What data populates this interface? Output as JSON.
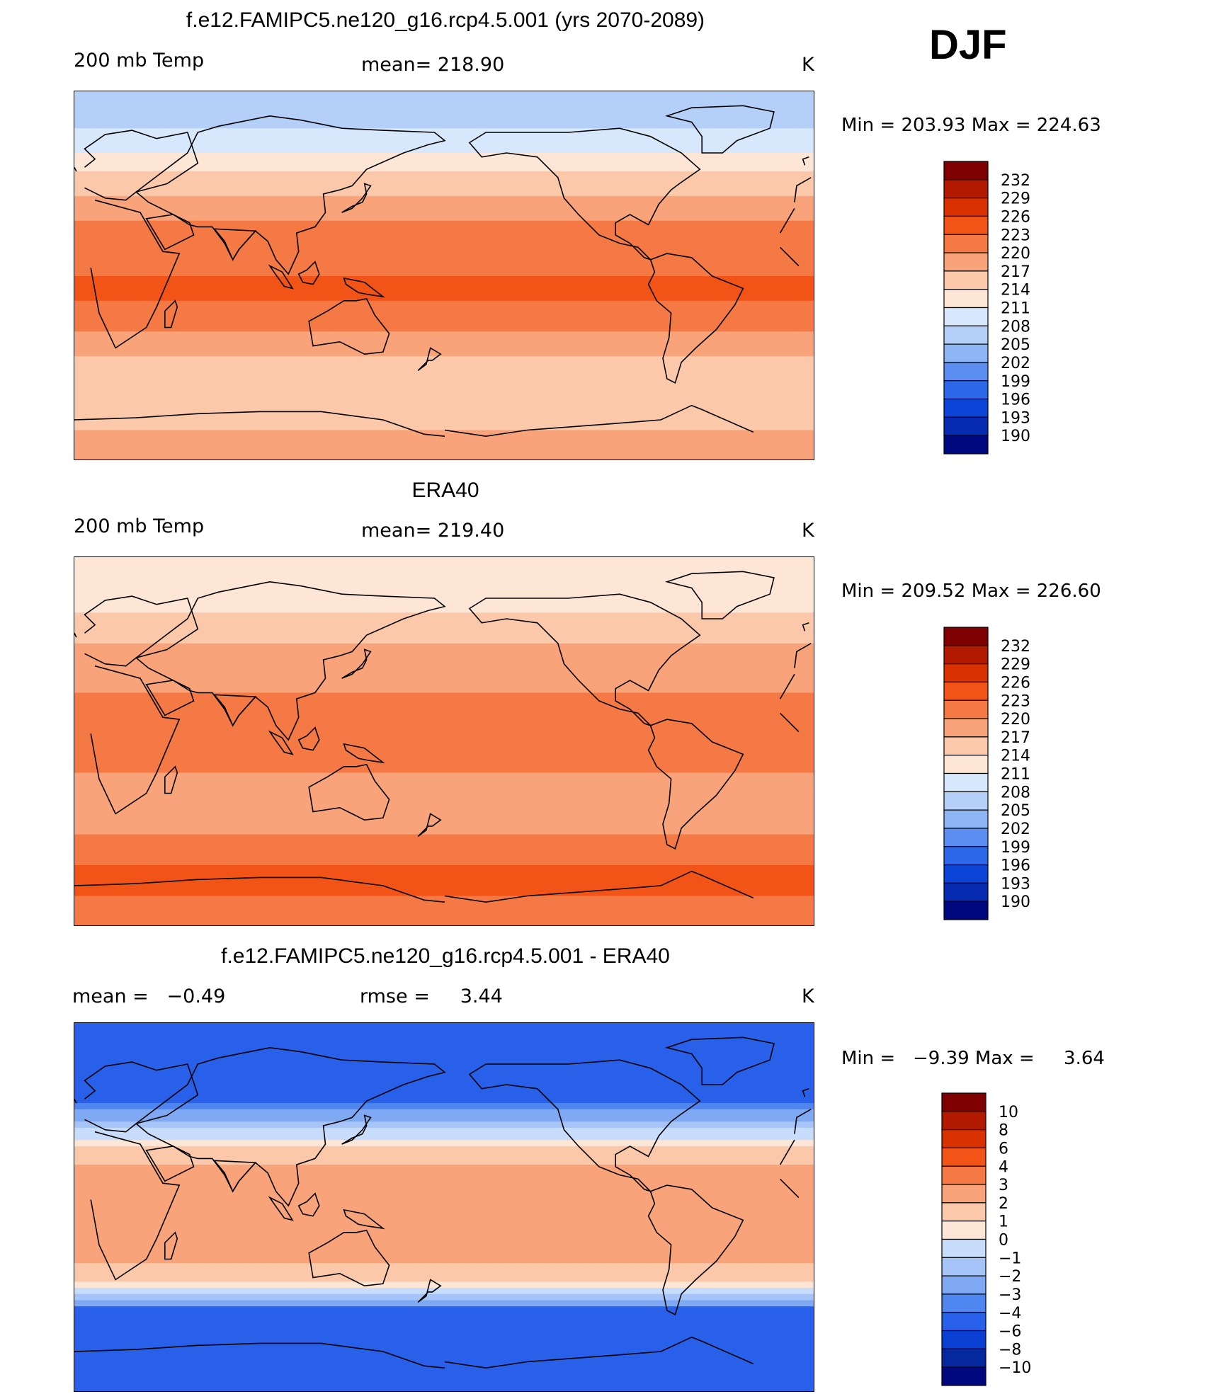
{
  "season": "DJF",
  "chart_data": [
    {
      "type": "heatmap",
      "title": "f.e12.FAMIPC5.ne120_g16.rcp4.5.001 (yrs 2070-2089)",
      "left_label": "200 mb Temp",
      "center_label": "mean= 218.90",
      "units": "K",
      "min_max": "Min = 203.93 Max = 224.63",
      "min": 203.93,
      "max": 224.63,
      "mean": 218.9,
      "colorbar_labels": [
        "232",
        "229",
        "226",
        "223",
        "220",
        "217",
        "214",
        "211",
        "208",
        "205",
        "202",
        "199",
        "196",
        "193",
        "190"
      ],
      "zonal_profile": [
        {
          "lat": 90,
          "value": 206
        },
        {
          "lat": 75,
          "value": 207
        },
        {
          "lat": 62,
          "value": 210
        },
        {
          "lat": 50,
          "value": 214
        },
        {
          "lat": 40,
          "value": 217
        },
        {
          "lat": 28,
          "value": 220
        },
        {
          "lat": 15,
          "value": 222
        },
        {
          "lat": 0,
          "value": 223
        },
        {
          "lat": -12,
          "value": 223
        },
        {
          "lat": -25,
          "value": 221
        },
        {
          "lat": -35,
          "value": 218
        },
        {
          "lat": -45,
          "value": 216
        },
        {
          "lat": -60,
          "value": 216
        },
        {
          "lat": -75,
          "value": 217
        },
        {
          "lat": -90,
          "value": 217
        }
      ]
    },
    {
      "type": "heatmap",
      "title": "ERA40",
      "left_label": "200 mb Temp",
      "center_label": "mean= 219.40",
      "units": "K",
      "min_max": "Min = 209.52 Max = 226.60",
      "min": 209.52,
      "max": 226.6,
      "mean": 219.4,
      "colorbar_labels": [
        "232",
        "229",
        "226",
        "223",
        "220",
        "217",
        "214",
        "211",
        "208",
        "205",
        "202",
        "199",
        "196",
        "193",
        "190"
      ],
      "zonal_profile": [
        {
          "lat": 90,
          "value": 211
        },
        {
          "lat": 75,
          "value": 212
        },
        {
          "lat": 62,
          "value": 214
        },
        {
          "lat": 50,
          "value": 216
        },
        {
          "lat": 40,
          "value": 219
        },
        {
          "lat": 25,
          "value": 220
        },
        {
          "lat": 10,
          "value": 220
        },
        {
          "lat": 0,
          "value": 220
        },
        {
          "lat": -15,
          "value": 220
        },
        {
          "lat": -30,
          "value": 218
        },
        {
          "lat": -42,
          "value": 219
        },
        {
          "lat": -50,
          "value": 221
        },
        {
          "lat": -60,
          "value": 223
        },
        {
          "lat": -75,
          "value": 223
        },
        {
          "lat": -90,
          "value": 222
        }
      ]
    },
    {
      "type": "heatmap",
      "title": "f.e12.FAMIPC5.ne120_g16.rcp4.5.001 - ERA40",
      "left_label": "mean =   −0.49",
      "center_label": "rmse =     3.44",
      "units": "K",
      "min_max": "Min =   −9.39 Max =     3.64",
      "min": -9.39,
      "max": 3.64,
      "mean": -0.49,
      "rmse": 3.44,
      "colorbar_labels": [
        "10",
        "8",
        "6",
        "4",
        "3",
        "2",
        "1",
        "0",
        "−1",
        "−2",
        "−3",
        "−4",
        "−6",
        "−8",
        "−10"
      ],
      "zonal_profile": [
        {
          "lat": 90,
          "value": -5
        },
        {
          "lat": 75,
          "value": -5
        },
        {
          "lat": 62,
          "value": -5
        },
        {
          "lat": 52,
          "value": -4
        },
        {
          "lat": 45,
          "value": -2.5
        },
        {
          "lat": 40,
          "value": -1.5
        },
        {
          "lat": 34,
          "value": 0
        },
        {
          "lat": 28,
          "value": 1.5
        },
        {
          "lat": 15,
          "value": 2.5
        },
        {
          "lat": 0,
          "value": 2.5
        },
        {
          "lat": -20,
          "value": 2.5
        },
        {
          "lat": -32,
          "value": 1.5
        },
        {
          "lat": -40,
          "value": 0
        },
        {
          "lat": -45,
          "value": -2
        },
        {
          "lat": -50,
          "value": -4.5
        },
        {
          "lat": -60,
          "value": -6
        },
        {
          "lat": -75,
          "value": -6
        },
        {
          "lat": -90,
          "value": -6
        }
      ]
    }
  ],
  "colors": {
    "temp": [
      "#7f0000",
      "#b21a00",
      "#d93200",
      "#f25418",
      "#f47944",
      "#f8a37a",
      "#fbc8aa",
      "#fde6d6",
      "#d8e8fc",
      "#b4cff8",
      "#8fb6f4",
      "#5b8ef0",
      "#2d68ea",
      "#0d44d8",
      "#062ab0",
      "#000880"
    ],
    "diff": [
      "#7f0000",
      "#b21a00",
      "#d93200",
      "#f25418",
      "#f47944",
      "#f8a37a",
      "#fbc8aa",
      "#fde6d6",
      "#f5f5ff",
      "#c8dcfb",
      "#a6c4f7",
      "#7fa9f2",
      "#4f85ee",
      "#2860ea",
      "#0a3fd4",
      "#06289f",
      "#000880"
    ]
  }
}
